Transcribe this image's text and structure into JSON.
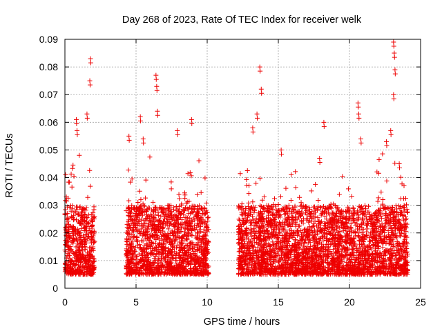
{
  "chart_data": {
    "type": "scatter",
    "title": "Day 268 of 2023, Rate Of TEC Index for receiver welk",
    "xlabel": "GPS time / hours",
    "ylabel": "ROTI / TECUs",
    "xlim": [
      0,
      25
    ],
    "ylim": [
      0,
      0.09
    ],
    "xticks": [
      0,
      5,
      10,
      15,
      20,
      25
    ],
    "yticks": [
      0,
      0.01,
      0.02,
      0.03,
      0.04,
      0.05,
      0.06,
      0.07,
      0.08,
      0.09
    ],
    "grid": true,
    "marker": "+",
    "color": "#ee0000",
    "series": [
      {
        "name": "ROTI",
        "coverage_hours": [
          [
            0.0,
            2.1
          ],
          [
            4.3,
            10.1
          ],
          [
            12.2,
            24.1
          ]
        ],
        "typical_range": [
          0.005,
          0.03
        ],
        "peaks": [
          {
            "x": 0.1,
            "y": 0.033
          },
          {
            "x": 0.8,
            "y": 0.061
          },
          {
            "x": 0.85,
            "y": 0.057
          },
          {
            "x": 1.55,
            "y": 0.063
          },
          {
            "x": 1.8,
            "y": 0.083
          },
          {
            "x": 1.75,
            "y": 0.075
          },
          {
            "x": 4.5,
            "y": 0.055
          },
          {
            "x": 5.3,
            "y": 0.062
          },
          {
            "x": 5.5,
            "y": 0.054
          },
          {
            "x": 6.4,
            "y": 0.077
          },
          {
            "x": 6.45,
            "y": 0.073
          },
          {
            "x": 6.5,
            "y": 0.064
          },
          {
            "x": 7.9,
            "y": 0.057
          },
          {
            "x": 8.9,
            "y": 0.061
          },
          {
            "x": 13.2,
            "y": 0.058
          },
          {
            "x": 13.5,
            "y": 0.063
          },
          {
            "x": 13.7,
            "y": 0.08
          },
          {
            "x": 13.8,
            "y": 0.072
          },
          {
            "x": 15.2,
            "y": 0.05
          },
          {
            "x": 17.9,
            "y": 0.047
          },
          {
            "x": 18.2,
            "y": 0.06
          },
          {
            "x": 20.6,
            "y": 0.067
          },
          {
            "x": 20.65,
            "y": 0.063
          },
          {
            "x": 20.8,
            "y": 0.054
          },
          {
            "x": 22.6,
            "y": 0.053
          },
          {
            "x": 22.9,
            "y": 0.057
          },
          {
            "x": 23.1,
            "y": 0.089
          },
          {
            "x": 23.15,
            "y": 0.085
          },
          {
            "x": 23.2,
            "y": 0.079
          },
          {
            "x": 23.1,
            "y": 0.07
          },
          {
            "x": 23.5,
            "y": 0.045
          }
        ]
      }
    ]
  }
}
